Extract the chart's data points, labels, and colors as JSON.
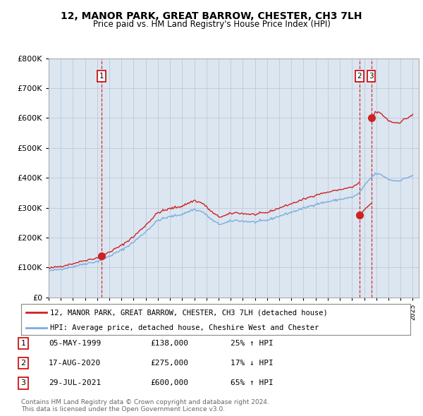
{
  "title": "12, MANOR PARK, GREAT BARROW, CHESTER, CH3 7LH",
  "subtitle": "Price paid vs. HM Land Registry's House Price Index (HPI)",
  "ylim": [
    0,
    800000
  ],
  "yticks": [
    0,
    100000,
    200000,
    300000,
    400000,
    500000,
    600000,
    700000,
    800000
  ],
  "xlim_start": 1995.0,
  "xlim_end": 2025.5,
  "hpi_line_color": "#7aaddc",
  "price_line_color": "#cc2222",
  "sale_marker_color": "#cc2222",
  "dashed_line_color": "#cc2222",
  "background_color": "#ffffff",
  "plot_bg_color": "#dce6f1",
  "grid_color": "#c0c8d8",
  "sale_points": [
    {
      "x": 1999.35,
      "y_paid": 138000,
      "label": "1"
    },
    {
      "x": 2020.62,
      "y_paid": 275000,
      "label": "2"
    },
    {
      "x": 2021.58,
      "y_paid": 600000,
      "label": "3"
    }
  ],
  "sale_table": [
    {
      "num": "1",
      "date": "05-MAY-1999",
      "price": "£138,000",
      "hpi": "25% ↑ HPI"
    },
    {
      "num": "2",
      "date": "17-AUG-2020",
      "price": "£275,000",
      "hpi": "17% ↓ HPI"
    },
    {
      "num": "3",
      "date": "29-JUL-2021",
      "price": "£600,000",
      "hpi": "65% ↑ HPI"
    }
  ],
  "legend_line1": "12, MANOR PARK, GREAT BARROW, CHESTER, CH3 7LH (detached house)",
  "legend_line2": "HPI: Average price, detached house, Cheshire West and Chester",
  "footer": "Contains HM Land Registry data © Crown copyright and database right 2024.\nThis data is licensed under the Open Government Licence v3.0."
}
